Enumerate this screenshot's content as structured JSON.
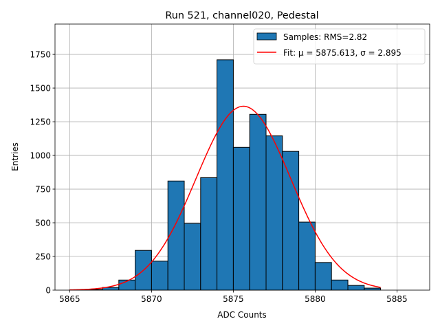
{
  "chart_data": {
    "type": "bar",
    "title": "Run 521, channel020, Pedestal",
    "xlabel": "ADC Counts",
    "ylabel": "Entries",
    "xlim": [
      5864.1,
      5887.0
    ],
    "ylim": [
      0,
      1975
    ],
    "xticks": [
      5865,
      5870,
      5875,
      5880,
      5885
    ],
    "yticks": [
      0,
      250,
      500,
      750,
      1000,
      1250,
      1500,
      1750
    ],
    "grid": true,
    "legend_position": "top-right",
    "bins": {
      "left_edges": [
        5865,
        5866,
        5867,
        5868,
        5869,
        5870,
        5871,
        5872,
        5873,
        5874,
        5875,
        5876,
        5877,
        5878,
        5879,
        5880,
        5881,
        5882,
        5883
      ],
      "width": 1,
      "values": [
        2,
        5,
        20,
        75,
        295,
        215,
        810,
        495,
        835,
        1710,
        1060,
        1305,
        1145,
        1030,
        505,
        205,
        75,
        35,
        15
      ]
    },
    "fit": {
      "mu": 5875.613,
      "sigma": 2.895,
      "amplitude": 1365,
      "x_range": [
        5865,
        5884
      ]
    },
    "series": [
      {
        "name": "Samples: RMS=2.82",
        "color": "#1f77b4"
      },
      {
        "name": "Fit: μ = 5875.613, σ = 2.895",
        "color": "#ff0000"
      }
    ]
  }
}
